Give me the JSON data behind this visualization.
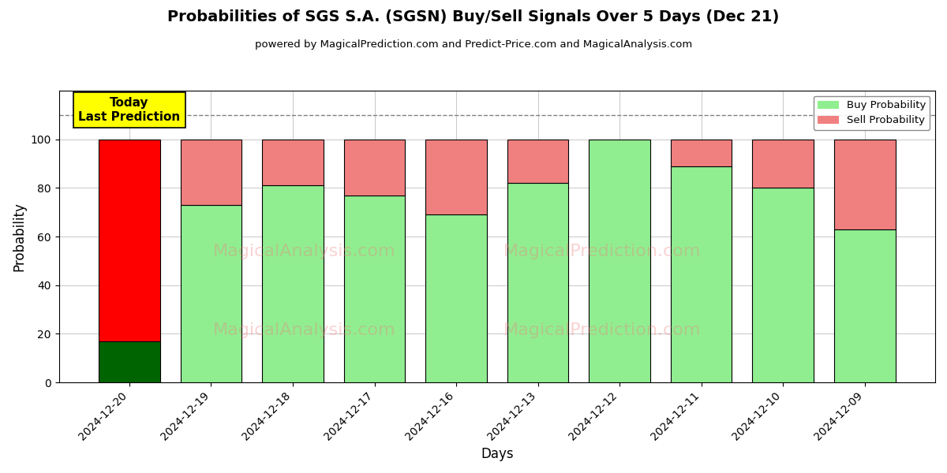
{
  "title": "Probabilities of SGS S.A. (SGSN) Buy/Sell Signals Over 5 Days (Dec 21)",
  "subtitle": "powered by MagicalPrediction.com and Predict-Price.com and MagicalAnalysis.com",
  "xlabel": "Days",
  "ylabel": "Probability",
  "categories": [
    "2024-12-20",
    "2024-12-19",
    "2024-12-18",
    "2024-12-17",
    "2024-12-16",
    "2024-12-13",
    "2024-12-12",
    "2024-12-11",
    "2024-12-10",
    "2024-12-09"
  ],
  "buy_values": [
    17,
    73,
    81,
    77,
    69,
    82,
    100,
    89,
    80,
    63
  ],
  "sell_values": [
    83,
    27,
    19,
    23,
    31,
    18,
    0,
    11,
    20,
    37
  ],
  "buy_color_first": "#006400",
  "sell_color_first": "#FF0000",
  "buy_color_rest": "#90EE90",
  "sell_color_rest": "#F08080",
  "bar_edge_color": "#000000",
  "background_color": "#ffffff",
  "grid_color": "#cccccc",
  "ylim": [
    0,
    120
  ],
  "yticks": [
    0,
    20,
    40,
    60,
    80,
    100
  ],
  "dashed_line_y": 110,
  "annotation_text": "Today\nLast Prediction",
  "annotation_bg": "#FFFF00",
  "legend_buy_label": "Buy Probability",
  "legend_sell_label": "Sell Probability",
  "watermark1": "MagicalAnalysis.com",
  "watermark2": "MagicalPrediction.com"
}
